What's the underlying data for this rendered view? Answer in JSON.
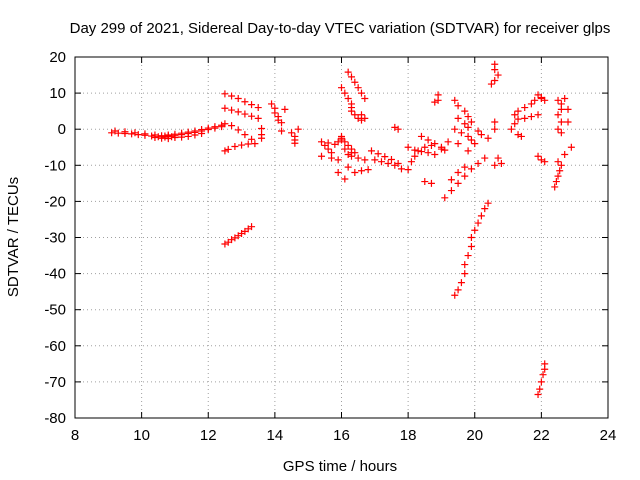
{
  "chart_data": {
    "type": "scatter",
    "title": "Day 299 of 2021, Sidereal Day-to-day VTEC variation (SDTVAR) for receiver glps",
    "xlabel": "GPS time / hours",
    "ylabel": "SDTVAR / TECUs",
    "xlim": [
      8,
      24
    ],
    "ylim": [
      -80,
      20
    ],
    "xticks": [
      "8",
      "10",
      "12",
      "14",
      "16",
      "18",
      "20",
      "22",
      "24"
    ],
    "yticks": [
      "20",
      "10",
      "0",
      "-10",
      "-20",
      "-30",
      "-40",
      "-50",
      "-60",
      "-70",
      "-80"
    ],
    "grid": true,
    "marker": "+",
    "marker_color": "#ff0000",
    "series": [
      {
        "name": "SDTVAR",
        "points": [
          [
            9.1,
            -1.0
          ],
          [
            9.3,
            -1.1
          ],
          [
            9.5,
            -1.2
          ],
          [
            9.7,
            -1.3
          ],
          [
            9.9,
            -1.5
          ],
          [
            10.1,
            -1.7
          ],
          [
            10.3,
            -1.9
          ],
          [
            10.5,
            -2.1
          ],
          [
            10.7,
            -2.2
          ],
          [
            9.2,
            -0.5
          ],
          [
            9.5,
            -0.7
          ],
          [
            9.8,
            -1.0
          ],
          [
            10.1,
            -1.3
          ],
          [
            10.4,
            -1.6
          ],
          [
            10.7,
            -1.9
          ],
          [
            10.9,
            -2.1
          ],
          [
            10.4,
            -2.3
          ],
          [
            10.6,
            -2.5
          ],
          [
            10.8,
            -2.6
          ],
          [
            10.6,
            -1.8
          ],
          [
            10.8,
            -1.6
          ],
          [
            11.0,
            -1.4
          ],
          [
            11.2,
            -1.1
          ],
          [
            11.4,
            -0.8
          ],
          [
            11.6,
            -0.5
          ],
          [
            11.8,
            -0.1
          ],
          [
            12.0,
            0.3
          ],
          [
            12.2,
            0.7
          ],
          [
            12.4,
            1.1
          ],
          [
            12.5,
            1.5
          ],
          [
            10.8,
            -1.9
          ],
          [
            11.0,
            -1.8
          ],
          [
            11.2,
            -1.5
          ],
          [
            11.4,
            -1.2
          ],
          [
            11.6,
            -0.9
          ],
          [
            11.8,
            -0.5
          ],
          [
            12.0,
            -0.1
          ],
          [
            12.2,
            0.3
          ],
          [
            12.4,
            0.7
          ],
          [
            11.0,
            -2.3
          ],
          [
            11.2,
            -2.2
          ],
          [
            11.4,
            -2.0
          ],
          [
            11.6,
            -1.6
          ],
          [
            11.8,
            -1.2
          ],
          [
            12.5,
            9.8
          ],
          [
            12.7,
            9.2
          ],
          [
            12.9,
            8.5
          ],
          [
            13.1,
            7.6
          ],
          [
            13.3,
            6.8
          ],
          [
            13.5,
            6.0
          ],
          [
            12.5,
            5.8
          ],
          [
            12.7,
            5.3
          ],
          [
            12.9,
            4.8
          ],
          [
            13.1,
            4.2
          ],
          [
            13.3,
            3.6
          ],
          [
            13.5,
            3.0
          ],
          [
            12.7,
            1.0
          ],
          [
            12.9,
            -0.2
          ],
          [
            13.1,
            -1.5
          ],
          [
            13.3,
            -2.8
          ],
          [
            12.5,
            -6.0
          ],
          [
            12.6,
            -5.6
          ],
          [
            12.8,
            -4.8
          ],
          [
            13.0,
            -4.4
          ],
          [
            13.2,
            -4.1
          ],
          [
            13.4,
            -4.0
          ],
          [
            12.5,
            -31.8
          ],
          [
            12.6,
            -31.3
          ],
          [
            12.7,
            -30.6
          ],
          [
            12.8,
            -30.1
          ],
          [
            12.9,
            -29.5
          ],
          [
            13.0,
            -28.9
          ],
          [
            13.1,
            -28.3
          ],
          [
            13.2,
            -27.6
          ],
          [
            13.3,
            -27.0
          ],
          [
            13.6,
            0.2
          ],
          [
            13.6,
            -1.5
          ],
          [
            13.6,
            -2.5
          ],
          [
            13.9,
            7.0
          ],
          [
            14.0,
            5.8
          ],
          [
            14.0,
            4.5
          ],
          [
            14.1,
            3.5
          ],
          [
            14.1,
            2.5
          ],
          [
            14.2,
            1.8
          ],
          [
            14.3,
            5.5
          ],
          [
            14.2,
            -0.5
          ],
          [
            14.5,
            -1.0
          ],
          [
            14.6,
            -2.0
          ],
          [
            14.6,
            -3.0
          ],
          [
            14.6,
            -3.9
          ],
          [
            14.7,
            0.0
          ],
          [
            15.4,
            -3.5
          ],
          [
            15.5,
            -4.5
          ],
          [
            15.6,
            -5.5
          ],
          [
            15.7,
            -6.5
          ],
          [
            15.6,
            -3.8
          ],
          [
            15.8,
            -4.2
          ],
          [
            15.9,
            -3.5
          ],
          [
            16.0,
            -3.0
          ],
          [
            15.4,
            -7.5
          ],
          [
            15.7,
            -8.0
          ],
          [
            15.9,
            -8.5
          ],
          [
            15.9,
            -12.0
          ],
          [
            16.1,
            -13.8
          ],
          [
            16.0,
            -2.5
          ],
          [
            16.0,
            11.5
          ],
          [
            16.1,
            10.0
          ],
          [
            16.2,
            8.5
          ],
          [
            16.3,
            7.0
          ],
          [
            16.3,
            6.0
          ],
          [
            16.2,
            15.8
          ],
          [
            16.3,
            14.5
          ],
          [
            16.4,
            13.0
          ],
          [
            16.5,
            11.5
          ],
          [
            16.6,
            10.0
          ],
          [
            16.7,
            8.5
          ],
          [
            16.3,
            5.0
          ],
          [
            16.4,
            4.0
          ],
          [
            16.5,
            3.0
          ],
          [
            16.6,
            2.5
          ],
          [
            16.6,
            4.0
          ],
          [
            16.7,
            3.0
          ],
          [
            16.0,
            -2.0
          ],
          [
            16.1,
            -3.5
          ],
          [
            16.2,
            -4.5
          ],
          [
            16.3,
            -5.5
          ],
          [
            16.4,
            -6.5
          ],
          [
            16.2,
            -7.0
          ],
          [
            16.3,
            -7.5
          ],
          [
            16.5,
            -8.0
          ],
          [
            16.7,
            -8.5
          ],
          [
            16.2,
            -10.5
          ],
          [
            16.4,
            -12.0
          ],
          [
            16.6,
            -11.5
          ],
          [
            16.8,
            -11.2
          ],
          [
            16.1,
            -5.5
          ],
          [
            16.3,
            -6.5
          ],
          [
            16.9,
            -6.0
          ],
          [
            17.1,
            -6.8
          ],
          [
            17.3,
            -7.6
          ],
          [
            17.5,
            -8.4
          ],
          [
            17.7,
            -9.5
          ],
          [
            17.0,
            -8.5
          ],
          [
            17.2,
            -9.0
          ],
          [
            17.4,
            -9.5
          ],
          [
            17.6,
            -10.0
          ],
          [
            17.8,
            -11.0
          ],
          [
            17.6,
            0.5
          ],
          [
            17.7,
            0.0
          ],
          [
            18.0,
            -11.2
          ],
          [
            18.1,
            -9.0
          ],
          [
            18.2,
            -7.5
          ],
          [
            18.3,
            -6.0
          ],
          [
            18.5,
            -5.0
          ],
          [
            18.7,
            -4.5
          ],
          [
            18.0,
            -5.0
          ],
          [
            18.2,
            -5.8
          ],
          [
            18.4,
            -6.2
          ],
          [
            18.6,
            -6.5
          ],
          [
            18.8,
            -7.0
          ],
          [
            19.0,
            -5.5
          ],
          [
            18.4,
            -2.0
          ],
          [
            18.6,
            -3.0
          ],
          [
            18.8,
            -4.0
          ],
          [
            19.0,
            -5.0
          ],
          [
            19.1,
            -5.8
          ],
          [
            18.5,
            -14.5
          ],
          [
            18.7,
            -15.0
          ],
          [
            18.9,
            9.5
          ],
          [
            18.9,
            8.0
          ],
          [
            18.8,
            7.5
          ],
          [
            19.2,
            -3.5
          ],
          [
            19.5,
            -4.0
          ],
          [
            19.8,
            -6.0
          ],
          [
            19.4,
            8.0
          ],
          [
            19.5,
            6.5
          ],
          [
            19.7,
            5.0
          ],
          [
            19.8,
            3.5
          ],
          [
            19.9,
            2.0
          ],
          [
            19.4,
            0.0
          ],
          [
            19.6,
            -1.0
          ],
          [
            19.8,
            -2.0
          ],
          [
            19.9,
            -3.0
          ],
          [
            20.0,
            -4.0
          ],
          [
            19.5,
            3.0
          ],
          [
            19.7,
            1.5
          ],
          [
            19.8,
            0.5
          ],
          [
            20.1,
            -0.5
          ],
          [
            20.2,
            -1.5
          ],
          [
            20.4,
            -2.5
          ],
          [
            19.1,
            -19.0
          ],
          [
            19.3,
            -17.0
          ],
          [
            19.5,
            -15.0
          ],
          [
            19.7,
            -13.0
          ],
          [
            19.9,
            -11.0
          ],
          [
            20.1,
            -9.5
          ],
          [
            20.3,
            -8.0
          ],
          [
            19.3,
            -14.0
          ],
          [
            19.5,
            -12.0
          ],
          [
            19.7,
            -10.5
          ],
          [
            20.4,
            -20.5
          ],
          [
            20.3,
            -22.0
          ],
          [
            20.2,
            -24.0
          ],
          [
            20.1,
            -26.0
          ],
          [
            20.0,
            -28.0
          ],
          [
            19.9,
            -30.0
          ],
          [
            19.9,
            -32.5
          ],
          [
            19.8,
            -35.0
          ],
          [
            19.7,
            -37.5
          ],
          [
            19.7,
            -40.0
          ],
          [
            19.6,
            -42.5
          ],
          [
            19.5,
            -44.5
          ],
          [
            19.4,
            -46.0
          ],
          [
            20.6,
            18.0
          ],
          [
            20.6,
            16.5
          ],
          [
            20.7,
            15.0
          ],
          [
            20.6,
            13.5
          ],
          [
            20.5,
            12.5
          ],
          [
            20.6,
            2.0
          ],
          [
            20.6,
            0.0
          ],
          [
            20.7,
            -8.0
          ],
          [
            20.8,
            -9.5
          ],
          [
            20.6,
            -10.0
          ],
          [
            21.1,
            0.0
          ],
          [
            21.2,
            1.5
          ],
          [
            21.3,
            2.8
          ],
          [
            21.5,
            3.0
          ],
          [
            21.7,
            3.5
          ],
          [
            21.9,
            4.0
          ],
          [
            21.2,
            4.0
          ],
          [
            21.3,
            5.0
          ],
          [
            21.5,
            6.0
          ],
          [
            21.7,
            7.0
          ],
          [
            21.8,
            8.0
          ],
          [
            22.0,
            8.5
          ],
          [
            21.3,
            -1.5
          ],
          [
            21.4,
            -2.0
          ],
          [
            21.9,
            9.5
          ],
          [
            22.0,
            8.8
          ],
          [
            22.1,
            8.0
          ],
          [
            21.9,
            -7.5
          ],
          [
            22.0,
            -8.5
          ],
          [
            22.1,
            -9.0
          ],
          [
            21.9,
            -73.5
          ],
          [
            21.95,
            -72.0
          ],
          [
            22.0,
            -70.0
          ],
          [
            22.05,
            -68.0
          ],
          [
            22.1,
            -66.5
          ],
          [
            22.1,
            -65.0
          ],
          [
            22.4,
            -16.0
          ],
          [
            22.45,
            -14.5
          ],
          [
            22.5,
            -13.0
          ],
          [
            22.55,
            -11.5
          ],
          [
            22.6,
            -10.0
          ],
          [
            22.5,
            -9.0
          ],
          [
            22.5,
            8.0
          ],
          [
            22.6,
            7.0
          ],
          [
            22.6,
            5.5
          ],
          [
            22.5,
            4.0
          ],
          [
            22.6,
            2.0
          ],
          [
            22.5,
            0.0
          ],
          [
            22.6,
            -1.0
          ],
          [
            22.7,
            8.5
          ],
          [
            22.8,
            5.5
          ],
          [
            22.8,
            2.0
          ],
          [
            22.9,
            -5.0
          ],
          [
            22.7,
            -7.0
          ]
        ]
      }
    ]
  }
}
